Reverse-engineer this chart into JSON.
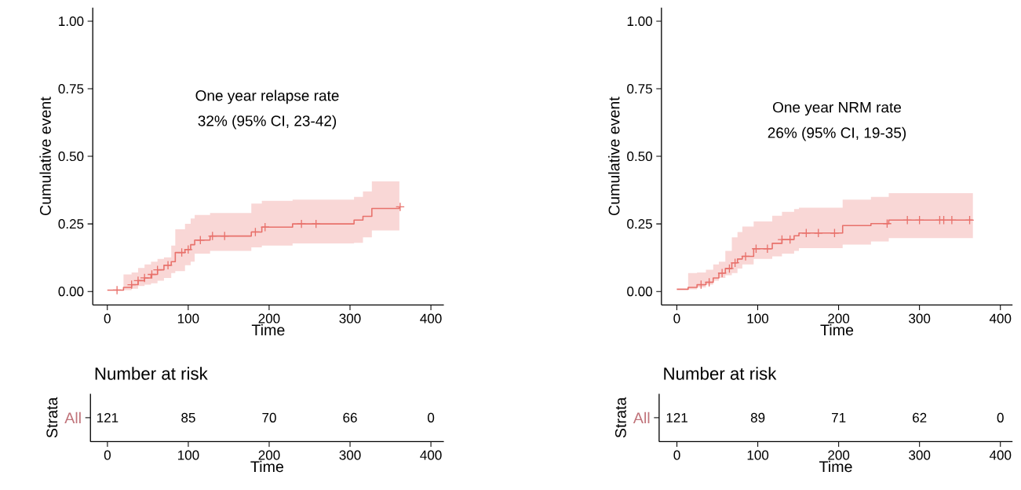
{
  "chart_data": [
    {
      "type": "step",
      "xlabel": "Time",
      "ylabel": "Cumulative event",
      "annotations": [
        "One year relapse rate",
        "32% (95% CI, 23-42)"
      ],
      "xlim": [
        -18,
        416
      ],
      "ylim": [
        -0.05,
        1.05
      ],
      "xticks": [
        0,
        100,
        200,
        300,
        400
      ],
      "yticks": [
        {
          "value": 0,
          "label": "0.00"
        },
        {
          "value": 0.25,
          "label": "0.25"
        },
        {
          "value": 0.5,
          "label": "0.50"
        },
        {
          "value": 0.75,
          "label": "0.75"
        },
        {
          "value": 1,
          "label": "1.00"
        }
      ],
      "series": [
        {
          "color": "#e8716b",
          "x": [
            0,
            20,
            30,
            38,
            46,
            54,
            62,
            70,
            79,
            84,
            96,
            103,
            108,
            127,
            178,
            191,
            229,
            305,
            316,
            327,
            361
          ],
          "values": [
            0.005,
            0.015,
            0.025,
            0.04,
            0.05,
            0.063,
            0.08,
            0.097,
            0.11,
            0.144,
            0.155,
            0.173,
            0.19,
            0.205,
            0.22,
            0.238,
            0.25,
            0.264,
            0.278,
            0.307,
            0.313
          ],
          "upper": [
            0.005,
            0.063,
            0.07,
            0.087,
            0.1,
            0.11,
            0.12,
            0.126,
            0.17,
            0.23,
            0.25,
            0.27,
            0.283,
            0.29,
            0.325,
            0.335,
            0.34,
            0.35,
            0.37,
            0.407,
            0.407
          ],
          "lower": [
            0.005,
            0.005,
            0.01,
            0.02,
            0.025,
            0.03,
            0.04,
            0.05,
            0.068,
            0.075,
            0.097,
            0.11,
            0.14,
            0.15,
            0.163,
            0.17,
            0.178,
            0.18,
            0.2,
            0.226,
            0.226
          ]
        },
        {
          "type": "scatter",
          "marker": "cross",
          "color": "#e8716b",
          "x": [
            12,
            30,
            38,
            46,
            55,
            62,
            75,
            92,
            100,
            115,
            130,
            145,
            183,
            195,
            240,
            258,
            362
          ],
          "values": [
            0.005,
            0.025,
            0.04,
            0.05,
            0.063,
            0.08,
            0.097,
            0.144,
            0.155,
            0.19,
            0.205,
            0.205,
            0.22,
            0.238,
            0.25,
            0.25,
            0.313
          ]
        }
      ]
    },
    {
      "type": "step",
      "xlabel": "Time",
      "ylabel": "Cumulative event",
      "annotations": [
        "One year NRM rate",
        "26% (95% CI, 19-35)"
      ],
      "xlim": [
        -19,
        415
      ],
      "ylim": [
        -0.05,
        1.05
      ],
      "xticks": [
        0,
        100,
        200,
        300,
        400
      ],
      "yticks": [
        {
          "value": 0,
          "label": "0.00"
        },
        {
          "value": 0.25,
          "label": "0.25"
        },
        {
          "value": 0.5,
          "label": "0.50"
        },
        {
          "value": 0.75,
          "label": "0.75"
        },
        {
          "value": 1,
          "label": "1.00"
        }
      ],
      "series": [
        {
          "color": "#e8716b",
          "x": [
            0,
            14,
            25,
            36,
            45,
            52,
            60,
            68,
            75,
            81,
            95,
            118,
            130,
            145,
            151,
            205,
            240,
            262,
            366
          ],
          "values": [
            0.008,
            0.015,
            0.025,
            0.034,
            0.05,
            0.068,
            0.085,
            0.106,
            0.12,
            0.13,
            0.158,
            0.178,
            0.192,
            0.206,
            0.216,
            0.244,
            0.251,
            0.264,
            0.264
          ],
          "upper": [
            0.008,
            0.068,
            0.07,
            0.08,
            0.1,
            0.11,
            0.15,
            0.2,
            0.22,
            0.24,
            0.259,
            0.28,
            0.295,
            0.305,
            0.31,
            0.34,
            0.35,
            0.364,
            0.364
          ],
          "lower": [
            0.008,
            0.008,
            0.015,
            0.025,
            0.04,
            0.05,
            0.06,
            0.068,
            0.085,
            0.1,
            0.12,
            0.13,
            0.14,
            0.15,
            0.16,
            0.173,
            0.185,
            0.197,
            0.197
          ]
        },
        {
          "type": "scatter",
          "marker": "cross",
          "color": "#e8716b",
          "x": [
            30,
            40,
            56,
            65,
            72,
            85,
            98,
            112,
            130,
            140,
            160,
            175,
            195,
            260,
            285,
            300,
            325,
            330,
            340,
            362
          ],
          "values": [
            0.025,
            0.034,
            0.068,
            0.085,
            0.106,
            0.13,
            0.158,
            0.158,
            0.192,
            0.192,
            0.216,
            0.216,
            0.216,
            0.251,
            0.264,
            0.264,
            0.264,
            0.264,
            0.264,
            0.264
          ]
        }
      ]
    },
    {
      "type": "heatmap",
      "title": "Number at risk",
      "xlabel": "Time",
      "ylabel": "Strata",
      "categories": [
        "0",
        "100",
        "200",
        "300",
        "400"
      ],
      "y_categories": [
        "All"
      ],
      "color": "#c0737a",
      "data_labels": true,
      "cells": [
        [
          121,
          85,
          70,
          66,
          0
        ]
      ]
    },
    {
      "type": "heatmap",
      "title": "Number at risk",
      "xlabel": "Time",
      "ylabel": "Strata",
      "categories": [
        "0",
        "100",
        "200",
        "300",
        "400"
      ],
      "y_categories": [
        "All"
      ],
      "color": "#c0737a",
      "data_labels": true,
      "cells": [
        [
          121,
          89,
          71,
          62,
          0
        ]
      ]
    }
  ]
}
